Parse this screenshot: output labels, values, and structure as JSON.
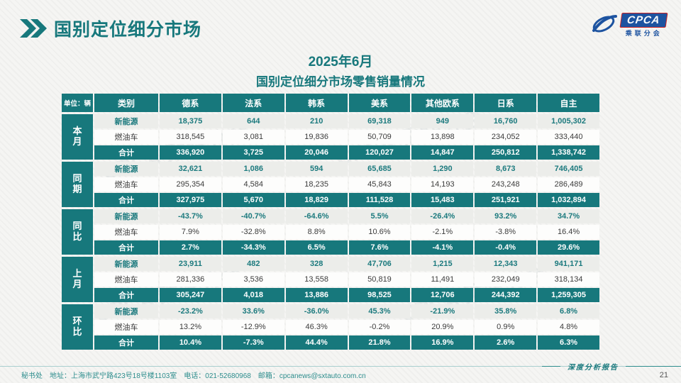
{
  "page": {
    "title": "国别定位细分市场",
    "subtitle_line1": "2025年6月",
    "subtitle_line2": "国别定位细分市场零售销量情况",
    "footer_left": "秘书处　地址：上海市武宁路423号18号楼1103室　电话：021-52680968　邮箱：cpcanews@sxtauto.com.cn",
    "footer_right": "深度分析报告",
    "page_number": "21"
  },
  "logo": {
    "text": "CPCA",
    "subtext": "乘联分会"
  },
  "colors": {
    "teal": "#17787c",
    "logo_blue": "#1d53a0",
    "nev_bg": "#ecedea",
    "rule": "#a9cfcf"
  },
  "table": {
    "unit_label": "单位：辆",
    "category_header": "类别",
    "columns": [
      "德系",
      "法系",
      "韩系",
      "美系",
      "其他欧系",
      "日系",
      "自主"
    ],
    "groups": [
      {
        "name": "本月",
        "rows": [
          {
            "label": "新能源",
            "type": "nev",
            "values": [
              "18,375",
              "644",
              "210",
              "69,318",
              "949",
              "16,760",
              "1,005,302"
            ]
          },
          {
            "label": "燃油车",
            "type": "ice",
            "values": [
              "318,545",
              "3,081",
              "19,836",
              "50,709",
              "13,898",
              "234,052",
              "333,440"
            ]
          },
          {
            "label": "合计",
            "type": "total",
            "values": [
              "336,920",
              "3,725",
              "20,046",
              "120,027",
              "14,847",
              "250,812",
              "1,338,742"
            ]
          }
        ]
      },
      {
        "name": "同期",
        "rows": [
          {
            "label": "新能源",
            "type": "nev",
            "values": [
              "32,621",
              "1,086",
              "594",
              "65,685",
              "1,290",
              "8,673",
              "746,405"
            ]
          },
          {
            "label": "燃油车",
            "type": "ice",
            "values": [
              "295,354",
              "4,584",
              "18,235",
              "45,843",
              "14,193",
              "243,248",
              "286,489"
            ]
          },
          {
            "label": "合计",
            "type": "total",
            "values": [
              "327,975",
              "5,670",
              "18,829",
              "111,528",
              "15,483",
              "251,921",
              "1,032,894"
            ]
          }
        ]
      },
      {
        "name": "同比",
        "rows": [
          {
            "label": "新能源",
            "type": "nev",
            "values": [
              "-43.7%",
              "-40.7%",
              "-64.6%",
              "5.5%",
              "-26.4%",
              "93.2%",
              "34.7%"
            ]
          },
          {
            "label": "燃油车",
            "type": "ice",
            "values": [
              "7.9%",
              "-32.8%",
              "8.8%",
              "10.6%",
              "-2.1%",
              "-3.8%",
              "16.4%"
            ]
          },
          {
            "label": "合计",
            "type": "total",
            "values": [
              "2.7%",
              "-34.3%",
              "6.5%",
              "7.6%",
              "-4.1%",
              "-0.4%",
              "29.6%"
            ]
          }
        ]
      },
      {
        "name": "上月",
        "rows": [
          {
            "label": "新能源",
            "type": "nev",
            "values": [
              "23,911",
              "482",
              "328",
              "47,706",
              "1,215",
              "12,343",
              "941,171"
            ]
          },
          {
            "label": "燃油车",
            "type": "ice",
            "values": [
              "281,336",
              "3,536",
              "13,558",
              "50,819",
              "11,491",
              "232,049",
              "318,134"
            ]
          },
          {
            "label": "合计",
            "type": "total",
            "values": [
              "305,247",
              "4,018",
              "13,886",
              "98,525",
              "12,706",
              "244,392",
              "1,259,305"
            ]
          }
        ]
      },
      {
        "name": "环比",
        "rows": [
          {
            "label": "新能源",
            "type": "nev",
            "values": [
              "-23.2%",
              "33.6%",
              "-36.0%",
              "45.3%",
              "-21.9%",
              "35.8%",
              "6.8%"
            ]
          },
          {
            "label": "燃油车",
            "type": "ice",
            "values": [
              "13.2%",
              "-12.9%",
              "46.3%",
              "-0.2%",
              "20.9%",
              "0.9%",
              "4.8%"
            ]
          },
          {
            "label": "合计",
            "type": "total",
            "values": [
              "10.4%",
              "-7.3%",
              "44.4%",
              "21.8%",
              "16.9%",
              "2.6%",
              "6.3%"
            ]
          }
        ]
      }
    ]
  }
}
